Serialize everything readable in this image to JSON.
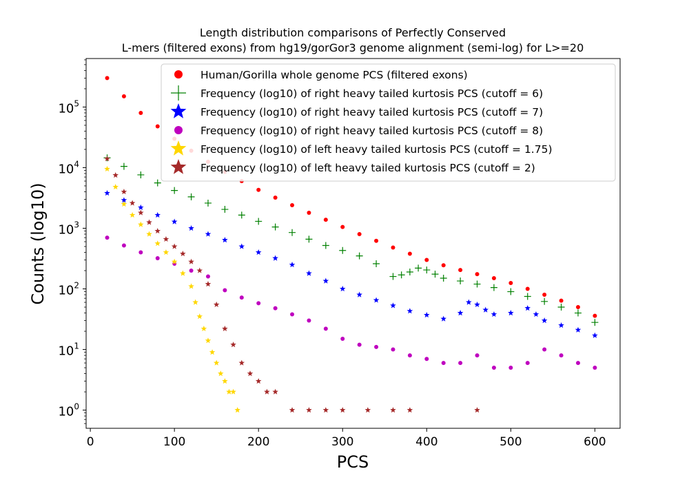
{
  "chart_data": {
    "type": "scatter",
    "title_lines": [
      "Length distribution comparisons of Perfectly Conserved",
      "L-mers (filtered exons) from hg19/gorGor3 genome alignment (semi-log) for L>=20"
    ],
    "xlabel": "PCS",
    "ylabel": "Counts (log10)",
    "xlim": [
      -5,
      630
    ],
    "ylim_log10": [
      -0.3,
      5.8
    ],
    "x_scale": "linear",
    "y_scale": "log",
    "grid": false,
    "legend_position": "top-right",
    "x_ticks": [
      {
        "value": 0,
        "label": "0"
      },
      {
        "value": 100,
        "label": "100"
      },
      {
        "value": 200,
        "label": "200"
      },
      {
        "value": 300,
        "label": "300"
      },
      {
        "value": 400,
        "label": "400"
      },
      {
        "value": 500,
        "label": "500"
      },
      {
        "value": 600,
        "label": "600"
      }
    ],
    "y_ticks": [
      {
        "value": 1,
        "base": "10",
        "exp": "0"
      },
      {
        "value": 10,
        "base": "10",
        "exp": "1"
      },
      {
        "value": 100,
        "base": "10",
        "exp": "2"
      },
      {
        "value": 1000,
        "base": "10",
        "exp": "3"
      },
      {
        "value": 10000,
        "base": "10",
        "exp": "4"
      },
      {
        "value": 100000,
        "base": "10",
        "exp": "5"
      }
    ],
    "series": [
      {
        "name": "Human/Gorilla whole genome PCS (filtered exons)",
        "marker": "circle",
        "color": "#ff0000",
        "points": [
          [
            20,
            300000
          ],
          [
            40,
            150000
          ],
          [
            60,
            80000
          ],
          [
            80,
            48000
          ],
          [
            100,
            30000
          ],
          [
            120,
            19000
          ],
          [
            140,
            12500
          ],
          [
            160,
            8500
          ],
          [
            180,
            6000
          ],
          [
            200,
            4300
          ],
          [
            220,
            3200
          ],
          [
            240,
            2400
          ],
          [
            260,
            1800
          ],
          [
            280,
            1380
          ],
          [
            300,
            1050
          ],
          [
            320,
            800
          ],
          [
            340,
            620
          ],
          [
            360,
            480
          ],
          [
            380,
            380
          ],
          [
            400,
            300
          ],
          [
            420,
            245
          ],
          [
            440,
            205
          ],
          [
            460,
            175
          ],
          [
            480,
            150
          ],
          [
            500,
            125
          ],
          [
            520,
            100
          ],
          [
            540,
            80
          ],
          [
            560,
            64
          ],
          [
            580,
            50
          ],
          [
            600,
            36
          ]
        ]
      },
      {
        "name": "Frequency (log10) of right heavy tailed kurtosis PCS (cutoff = 6)",
        "marker": "plus",
        "color": "#008000",
        "points": [
          [
            20,
            14500
          ],
          [
            40,
            10500
          ],
          [
            60,
            7600
          ],
          [
            80,
            5600
          ],
          [
            100,
            4200
          ],
          [
            120,
            3300
          ],
          [
            140,
            2600
          ],
          [
            160,
            2050
          ],
          [
            180,
            1650
          ],
          [
            200,
            1300
          ],
          [
            220,
            1050
          ],
          [
            240,
            850
          ],
          [
            260,
            660
          ],
          [
            280,
            520
          ],
          [
            300,
            430
          ],
          [
            320,
            350
          ],
          [
            340,
            260
          ],
          [
            360,
            160
          ],
          [
            370,
            170
          ],
          [
            380,
            190
          ],
          [
            390,
            220
          ],
          [
            400,
            205
          ],
          [
            410,
            175
          ],
          [
            420,
            150
          ],
          [
            440,
            135
          ],
          [
            460,
            120
          ],
          [
            480,
            105
          ],
          [
            500,
            90
          ],
          [
            520,
            75
          ],
          [
            540,
            62
          ],
          [
            560,
            50
          ],
          [
            580,
            40
          ],
          [
            600,
            28
          ]
        ]
      },
      {
        "name": "Frequency (log10) of right heavy tailed kurtosis PCS (cutoff = 7)",
        "marker": "star",
        "color": "#0000ff",
        "points": [
          [
            20,
            3800
          ],
          [
            40,
            2900
          ],
          [
            60,
            2200
          ],
          [
            80,
            1650
          ],
          [
            100,
            1280
          ],
          [
            120,
            1000
          ],
          [
            140,
            800
          ],
          [
            160,
            640
          ],
          [
            180,
            500
          ],
          [
            200,
            400
          ],
          [
            220,
            320
          ],
          [
            240,
            250
          ],
          [
            260,
            180
          ],
          [
            280,
            135
          ],
          [
            300,
            100
          ],
          [
            320,
            80
          ],
          [
            340,
            65
          ],
          [
            360,
            53
          ],
          [
            380,
            43
          ],
          [
            400,
            37
          ],
          [
            420,
            32
          ],
          [
            440,
            40
          ],
          [
            450,
            60
          ],
          [
            460,
            55
          ],
          [
            470,
            45
          ],
          [
            480,
            38
          ],
          [
            500,
            40
          ],
          [
            520,
            48
          ],
          [
            530,
            38
          ],
          [
            540,
            30
          ],
          [
            560,
            25
          ],
          [
            580,
            21
          ],
          [
            600,
            17
          ]
        ]
      },
      {
        "name": "Frequency (log10) of right heavy tailed kurtosis PCS (cutoff = 8)",
        "marker": "circle",
        "color": "#bf00bf",
        "points": [
          [
            20,
            700
          ],
          [
            40,
            520
          ],
          [
            60,
            400
          ],
          [
            80,
            320
          ],
          [
            100,
            260
          ],
          [
            120,
            200
          ],
          [
            140,
            160
          ],
          [
            160,
            95
          ],
          [
            180,
            72
          ],
          [
            200,
            58
          ],
          [
            220,
            48
          ],
          [
            240,
            38
          ],
          [
            260,
            30
          ],
          [
            280,
            22
          ],
          [
            300,
            15
          ],
          [
            320,
            12
          ],
          [
            340,
            11
          ],
          [
            360,
            10
          ],
          [
            380,
            8
          ],
          [
            400,
            7
          ],
          [
            420,
            6
          ],
          [
            440,
            6
          ],
          [
            460,
            8
          ],
          [
            480,
            5
          ],
          [
            500,
            5
          ],
          [
            520,
            6
          ],
          [
            540,
            10
          ],
          [
            560,
            8
          ],
          [
            580,
            6
          ],
          [
            600,
            5
          ]
        ]
      },
      {
        "name": "Frequency (log10) of left heavy tailed kurtosis PCS (cutoff = 1.75)",
        "marker": "star",
        "color": "#ffd700",
        "points": [
          [
            20,
            9500
          ],
          [
            30,
            4800
          ],
          [
            40,
            2500
          ],
          [
            50,
            1650
          ],
          [
            60,
            1150
          ],
          [
            70,
            800
          ],
          [
            80,
            560
          ],
          [
            90,
            400
          ],
          [
            100,
            280
          ],
          [
            110,
            180
          ],
          [
            120,
            110
          ],
          [
            125,
            60
          ],
          [
            130,
            35
          ],
          [
            135,
            22
          ],
          [
            140,
            14
          ],
          [
            145,
            9
          ],
          [
            150,
            6
          ],
          [
            155,
            4
          ],
          [
            160,
            3
          ],
          [
            165,
            2
          ],
          [
            170,
            2
          ],
          [
            175,
            1
          ]
        ]
      },
      {
        "name": "Frequency (log10) of left heavy tailed kurtosis PCS (cutoff = 2)",
        "marker": "star",
        "color": "#a52a2a",
        "points": [
          [
            20,
            14000
          ],
          [
            30,
            7500
          ],
          [
            40,
            4000
          ],
          [
            50,
            2600
          ],
          [
            60,
            1800
          ],
          [
            70,
            1250
          ],
          [
            80,
            900
          ],
          [
            90,
            660
          ],
          [
            100,
            500
          ],
          [
            110,
            380
          ],
          [
            120,
            280
          ],
          [
            130,
            200
          ],
          [
            140,
            120
          ],
          [
            150,
            55
          ],
          [
            160,
            22
          ],
          [
            170,
            12
          ],
          [
            180,
            6
          ],
          [
            190,
            4
          ],
          [
            200,
            3
          ],
          [
            210,
            2
          ],
          [
            220,
            2
          ],
          [
            240,
            1
          ],
          [
            260,
            1
          ],
          [
            280,
            1
          ],
          [
            300,
            1
          ],
          [
            330,
            1
          ],
          [
            360,
            1
          ],
          [
            380,
            1
          ],
          [
            460,
            1
          ]
        ]
      }
    ]
  }
}
